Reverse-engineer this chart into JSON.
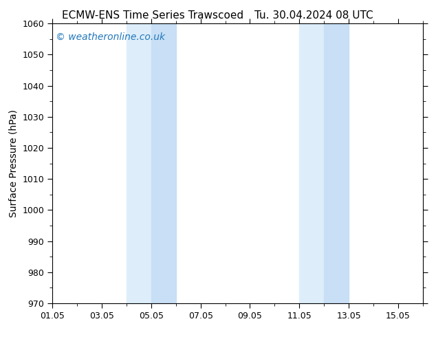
{
  "title_left": "ECMW-ENS Time Series Trawscoed",
  "title_right": "Tu. 30.04.2024 08 UTC",
  "ylabel": "Surface Pressure (hPa)",
  "ylim": [
    970,
    1060
  ],
  "yticks": [
    970,
    980,
    990,
    1000,
    1010,
    1020,
    1030,
    1040,
    1050,
    1060
  ],
  "xlim": [
    1.0,
    16.0
  ],
  "xtick_labels": [
    "01.05",
    "03.05",
    "05.05",
    "07.05",
    "09.05",
    "11.05",
    "13.05",
    "15.05"
  ],
  "xtick_positions": [
    1,
    3,
    5,
    7,
    9,
    11,
    13,
    15
  ],
  "shaded_bands": [
    {
      "start": 4.0,
      "end": 5.0
    },
    {
      "start": 5.0,
      "end": 6.0
    },
    {
      "start": 11.0,
      "end": 12.0
    },
    {
      "start": 12.0,
      "end": 13.0
    }
  ],
  "shade_color_light": "#ddeefa",
  "shade_color_dark": "#c8dff5",
  "background_color": "#ffffff",
  "watermark_text": "© weatheronline.co.uk",
  "watermark_color": "#2277bb",
  "title_fontsize": 11,
  "axis_label_fontsize": 10,
  "tick_fontsize": 9,
  "watermark_fontsize": 10,
  "figwidth": 6.34,
  "figheight": 4.9,
  "dpi": 100
}
